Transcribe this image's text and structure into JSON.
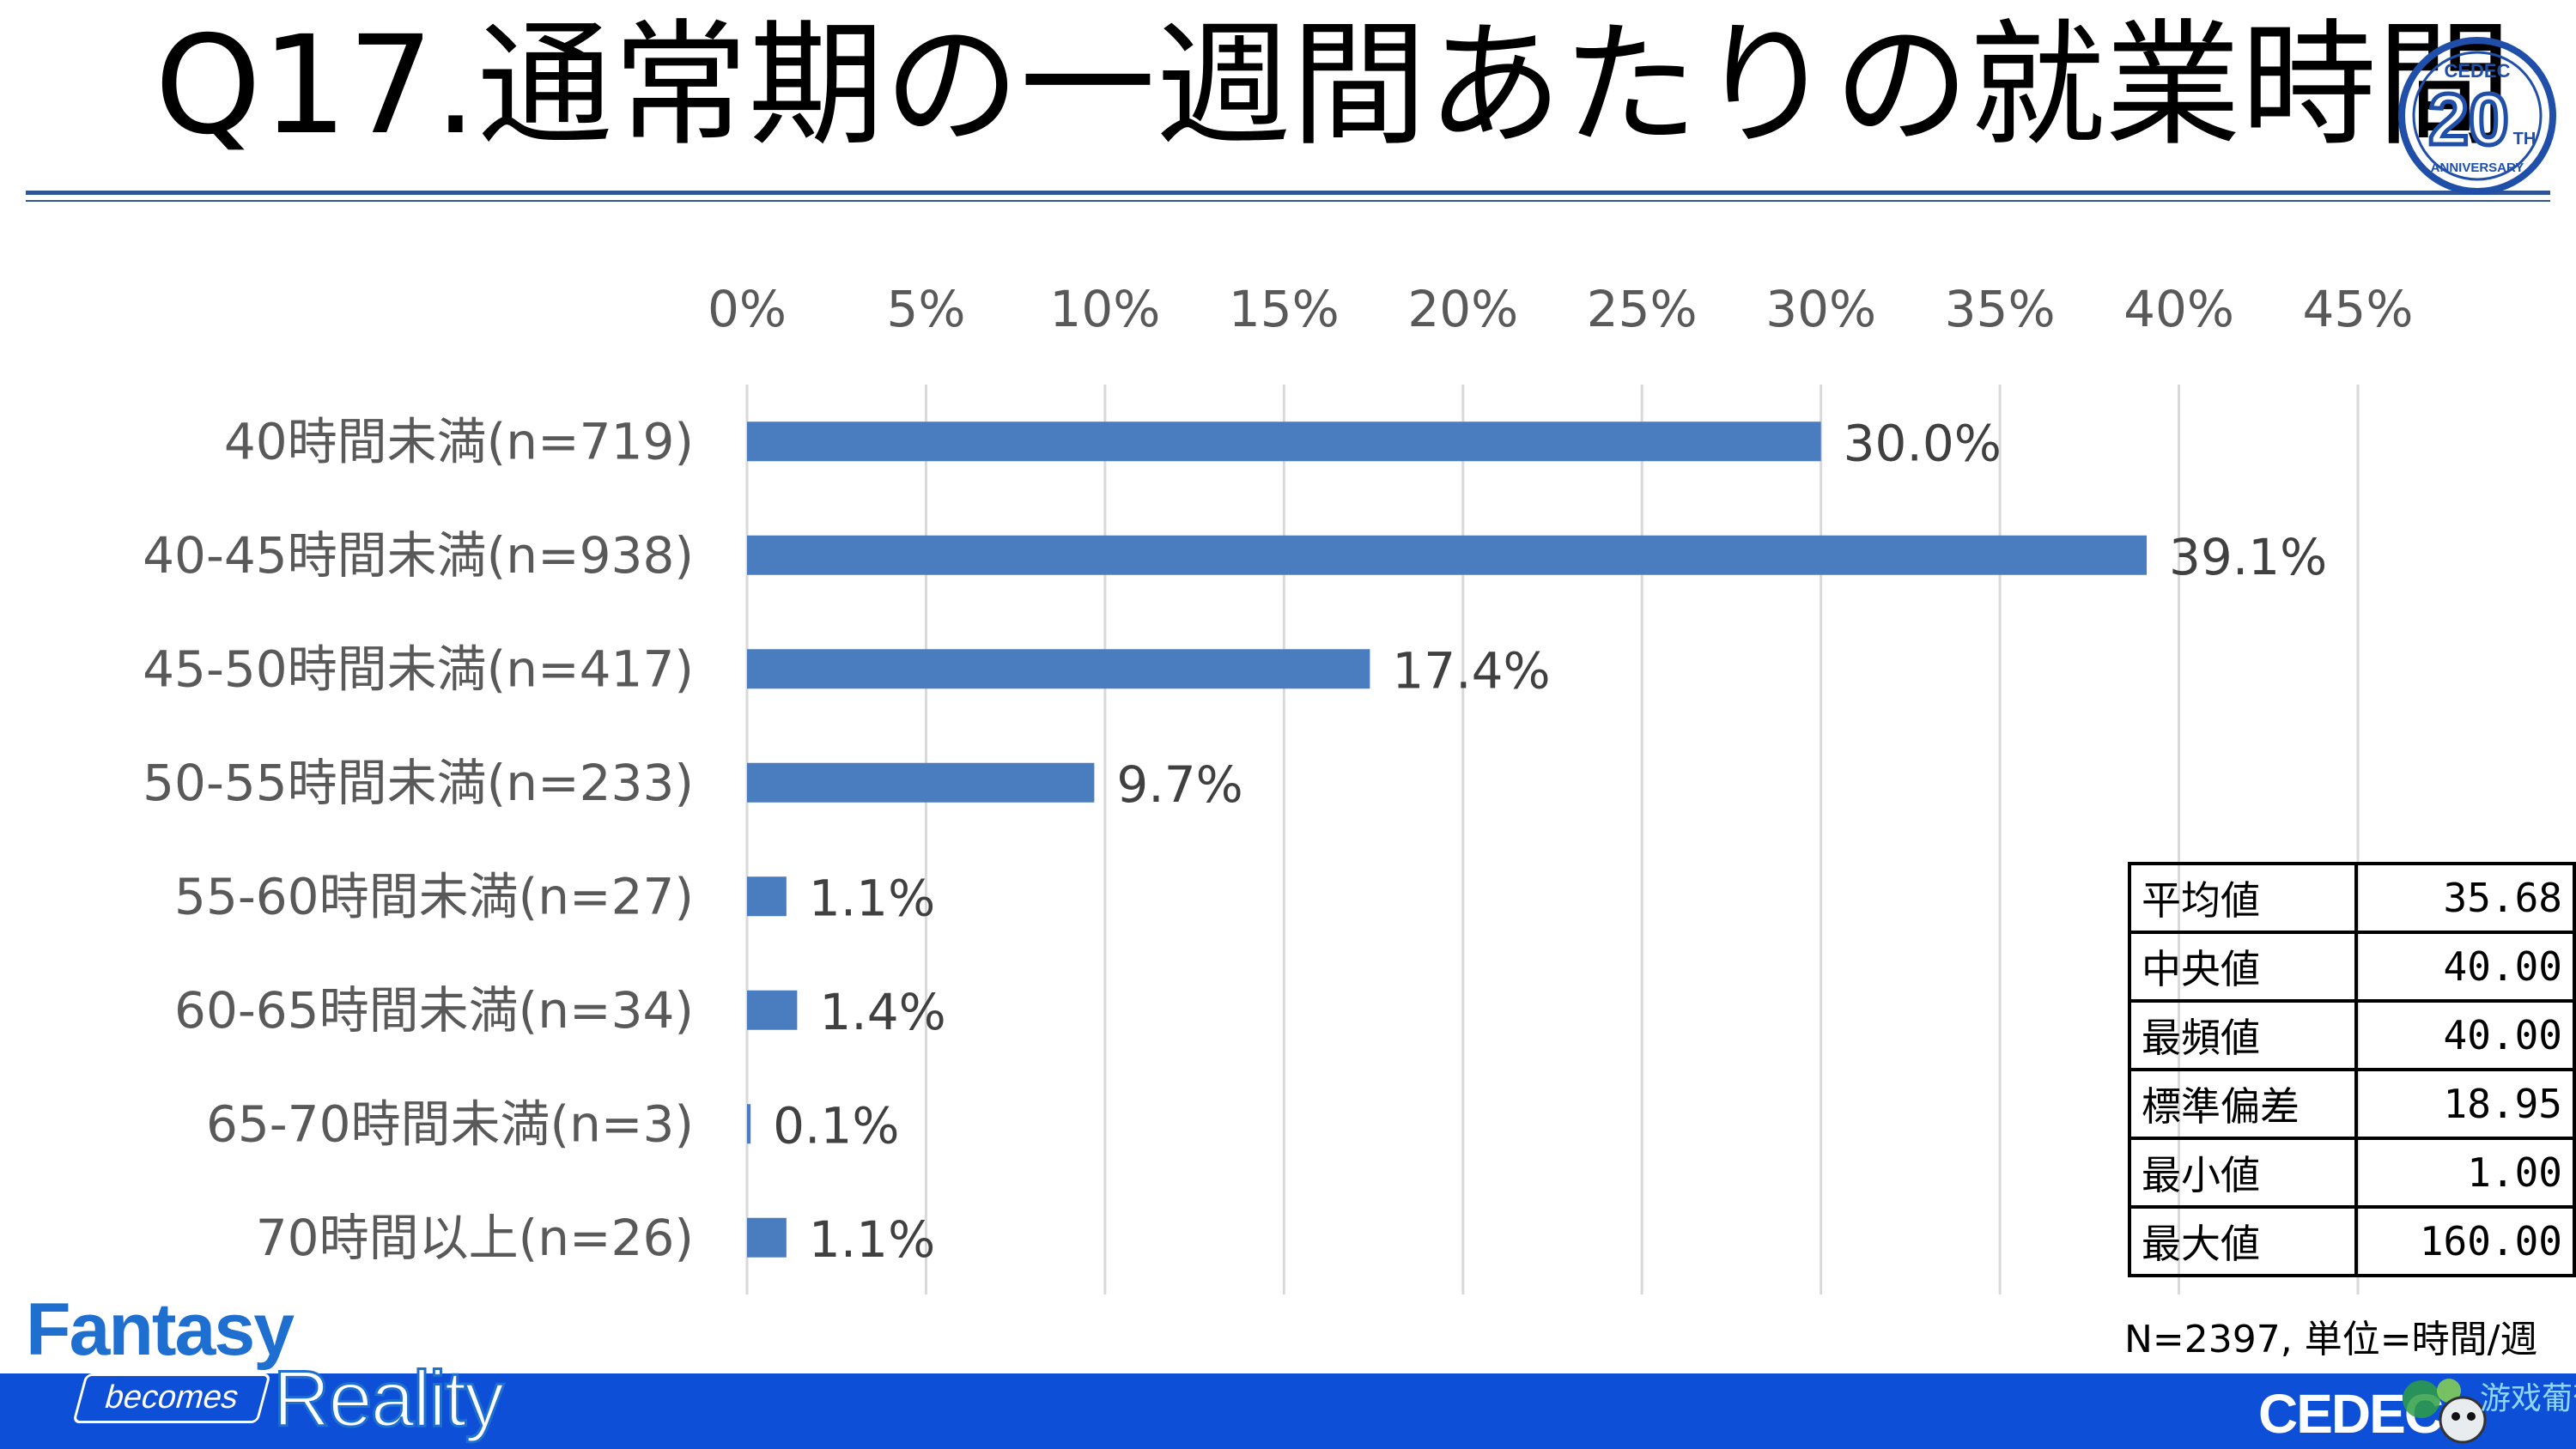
{
  "page": {
    "title": "Q17.通常期の一週間あたりの就業時間",
    "logo_20": {
      "top": "CEDEC",
      "number": "20",
      "suffix": "TH",
      "bottom": "ANNIVERSARY"
    },
    "note": "N=2397, 単位=時間/週",
    "brand": {
      "fantasy": "Fantasy",
      "becomes": "becomes",
      "reality": "Reality",
      "cedec": "CEDEC"
    },
    "watermark": "游戏葡萄"
  },
  "stats": [
    {
      "label": "平均値",
      "value": "35.68"
    },
    {
      "label": "中央値",
      "value": "40.00"
    },
    {
      "label": "最頻値",
      "value": "40.00"
    },
    {
      "label": "標準偏差",
      "value": "18.95"
    },
    {
      "label": "最小値",
      "value": "1.00"
    },
    {
      "label": "最大値",
      "value": "160.00"
    }
  ],
  "colors": {
    "bar": "#4a7dbf",
    "grid": "#d9d9d9",
    "rule": "#2f5597",
    "footer": "#0d4fd6"
  },
  "chart_data": {
    "type": "bar",
    "orientation": "horizontal",
    "categories": [
      "40時間未満(n=719)",
      "40-45時間未満(n=938)",
      "45-50時間未満(n=417)",
      "50-55時間未満(n=233)",
      "55-60時間未満(n=27)",
      "60-65時間未満(n=34)",
      "65-70時間未満(n=3)",
      "70時間以上(n=26)"
    ],
    "values": [
      30.0,
      39.1,
      17.4,
      9.7,
      1.1,
      1.4,
      0.1,
      1.1
    ],
    "data_labels": [
      "30.0%",
      "39.1%",
      "17.4%",
      "9.7%",
      "1.1%",
      "1.4%",
      "0.1%",
      "1.1%"
    ],
    "xlim": [
      0,
      45
    ],
    "xticks": [
      0,
      5,
      10,
      15,
      20,
      25,
      30,
      35,
      40,
      45
    ],
    "xtick_labels": [
      "0%",
      "5%",
      "10%",
      "15%",
      "20%",
      "25%",
      "30%",
      "35%",
      "40%",
      "45%"
    ],
    "axis_position": "top",
    "grid": true,
    "legend": "none"
  }
}
